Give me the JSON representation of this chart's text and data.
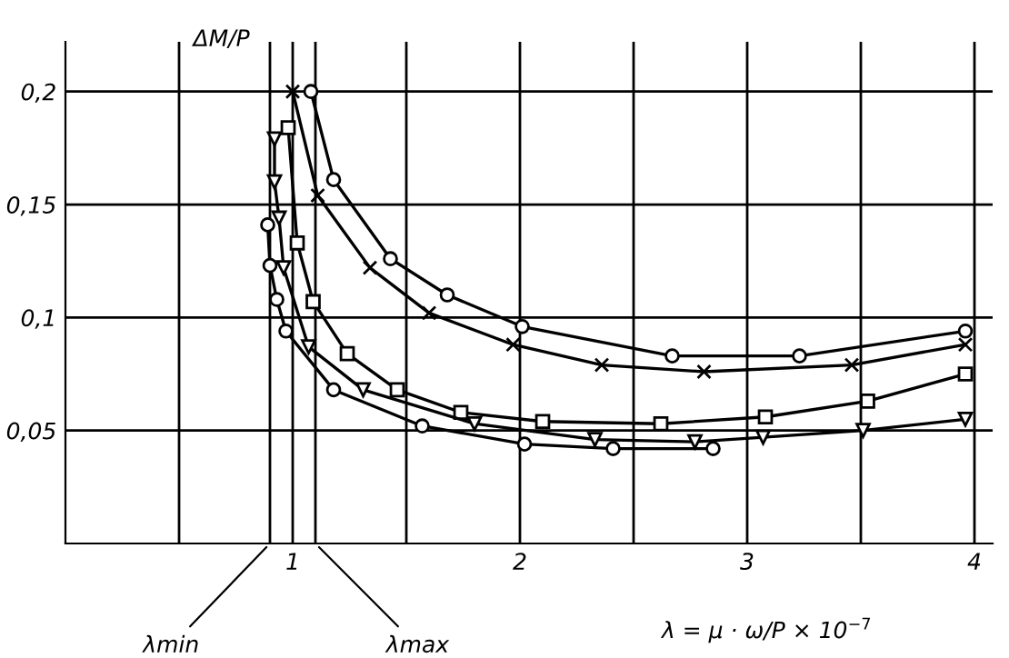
{
  "chart_data": {
    "type": "line",
    "ylabel": "ΔM/P",
    "xlabel": "λ = μ · ω/P × 10$^{−7}$",
    "xlim": [
      0,
      4.08
    ],
    "ylim": [
      0,
      0.222
    ],
    "xticks": [
      {
        "value": 0.5,
        "label": null
      },
      1,
      {
        "value": 1.5,
        "label": null
      },
      2,
      {
        "value": 2.5,
        "label": null
      },
      3,
      {
        "value": 3.5,
        "label": null
      },
      4
    ],
    "yticks": [
      {
        "value": 0.05,
        "label": "0,05"
      },
      {
        "value": 0.1,
        "label": "0,1"
      },
      {
        "value": 0.15,
        "label": "0,15"
      },
      {
        "value": 0.2,
        "label": "0,2"
      }
    ],
    "grid": true,
    "ref_lines": [
      {
        "axis": "x",
        "value": 0.9,
        "label": "λmin"
      },
      {
        "axis": "x",
        "value": 1.1,
        "label": "λmax"
      }
    ],
    "series": [
      {
        "color": "#000000",
        "marker": "circle",
        "x": [
          1.08,
          1.18,
          1.43,
          1.68,
          2.01,
          2.67,
          3.23,
          3.96
        ],
        "values": [
          0.2,
          0.161,
          0.126,
          0.11,
          0.096,
          0.083,
          0.083,
          0.094
        ]
      },
      {
        "color": "#000000",
        "marker": "cross",
        "x": [
          1.0,
          1.11,
          1.34,
          1.6,
          1.97,
          2.36,
          2.81,
          3.46,
          3.96
        ],
        "values": [
          0.2,
          0.154,
          0.122,
          0.102,
          0.088,
          0.079,
          0.076,
          0.079,
          0.088
        ]
      },
      {
        "color": "#000000",
        "marker": "square",
        "x": [
          0.98,
          1.02,
          1.09,
          1.24,
          1.46,
          1.74,
          2.1,
          2.62,
          3.08,
          3.53,
          3.96
        ],
        "values": [
          0.184,
          0.133,
          0.107,
          0.084,
          0.068,
          0.058,
          0.054,
          0.053,
          0.056,
          0.063,
          0.075
        ]
      },
      {
        "color": "#000000",
        "marker": "triangle",
        "x": [
          0.92,
          0.92,
          0.94,
          0.96,
          1.07,
          1.31,
          1.8,
          2.33,
          2.77,
          3.07,
          3.51,
          3.96
        ],
        "values": [
          0.179,
          0.16,
          0.144,
          0.122,
          0.087,
          0.068,
          0.053,
          0.046,
          0.045,
          0.047,
          0.05,
          0.055
        ]
      },
      {
        "color": "#000000",
        "marker": "circle",
        "x": [
          0.89,
          0.9,
          0.93,
          0.97,
          1.18,
          1.57,
          2.02,
          2.41,
          2.85
        ],
        "values": [
          0.141,
          0.123,
          0.108,
          0.094,
          0.068,
          0.052,
          0.044,
          0.042,
          0.042
        ]
      }
    ]
  }
}
